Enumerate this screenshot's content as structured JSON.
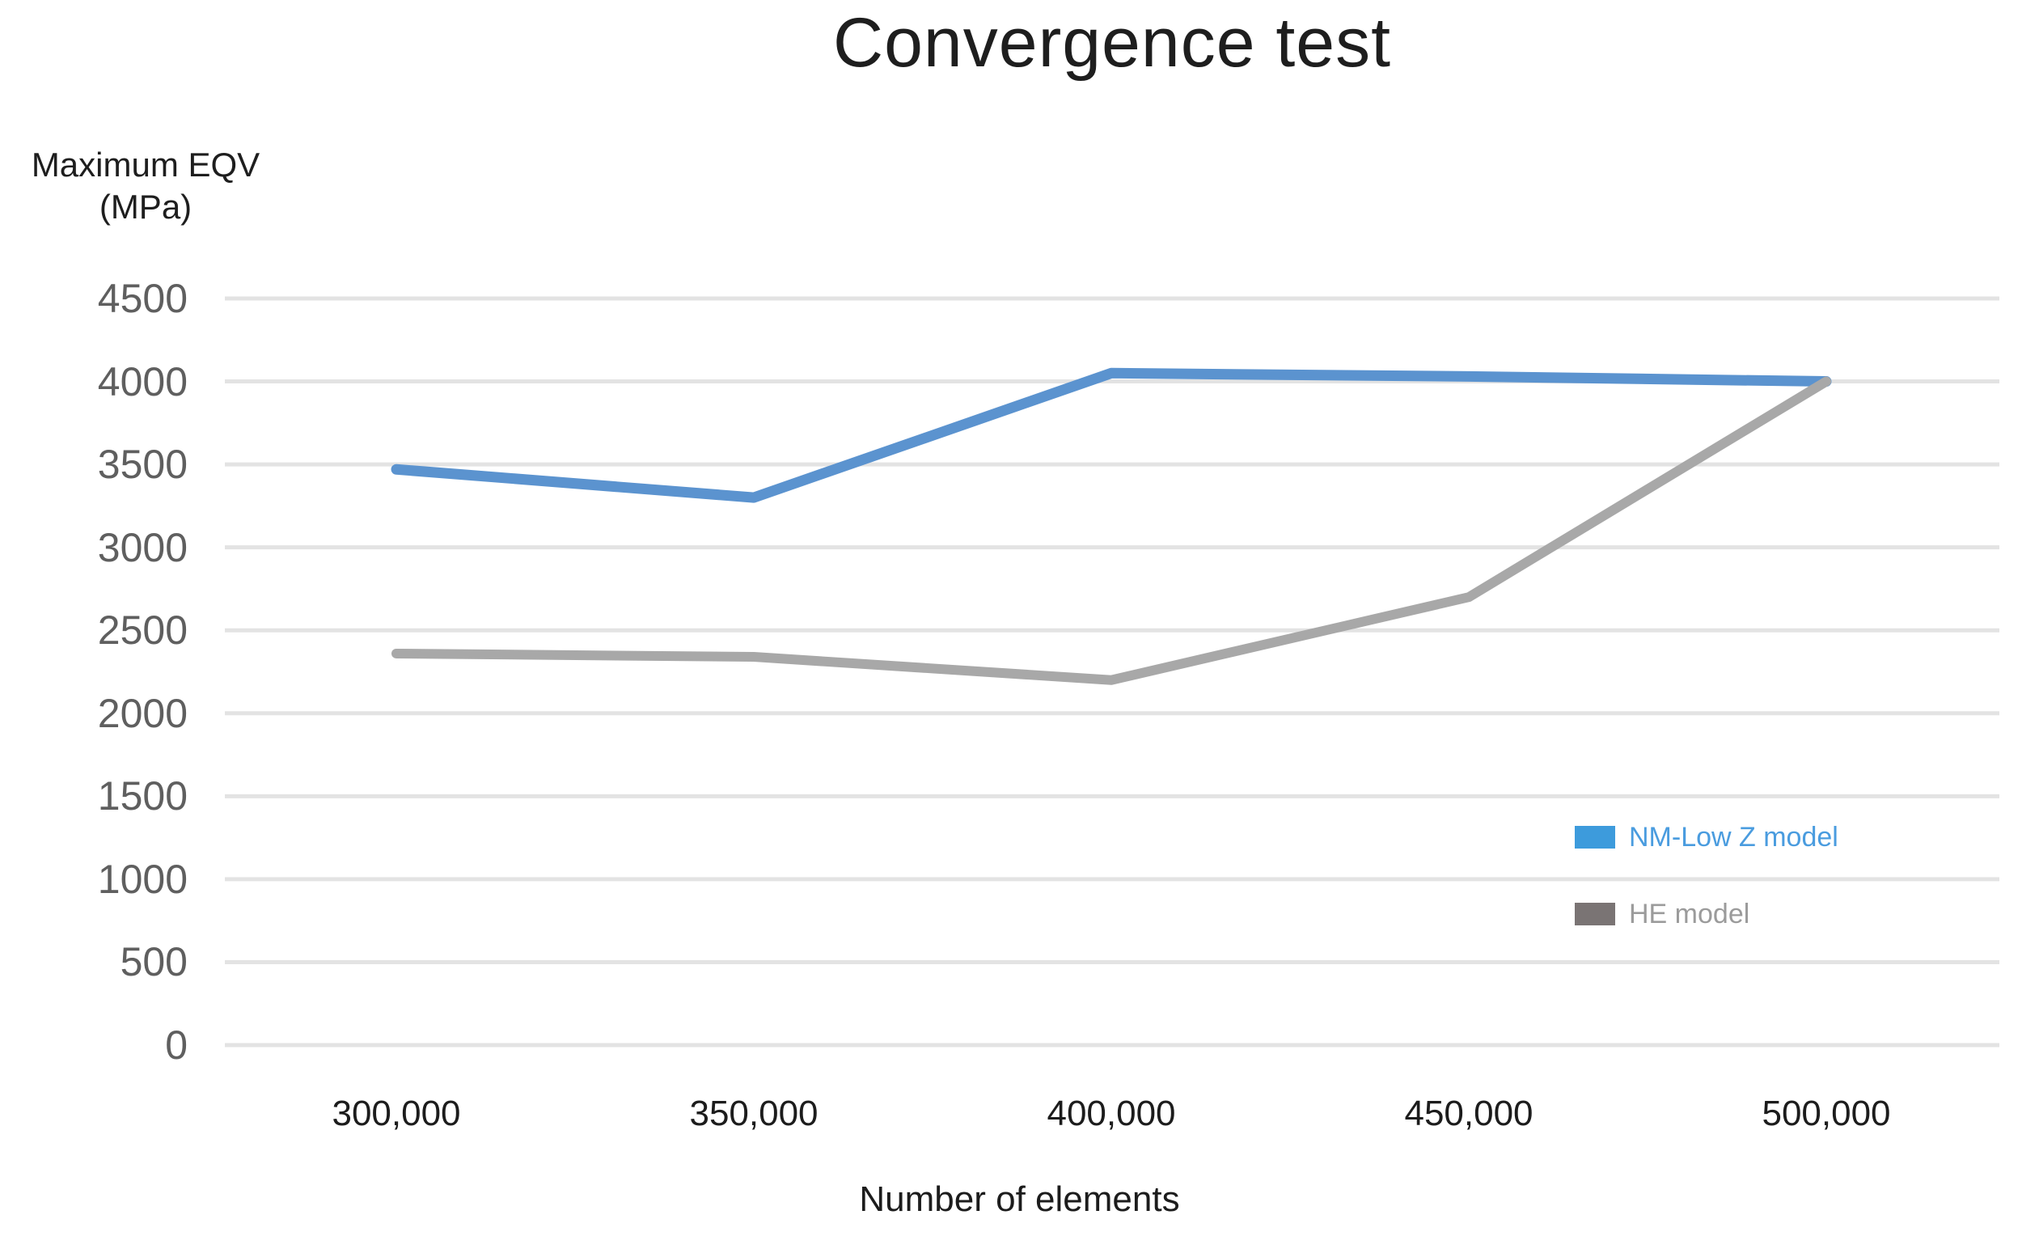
{
  "chart_data": {
    "type": "line",
    "title": "Convergence test",
    "xlabel": "Number of elements",
    "ylabel": "Maximum EQV (MPa)",
    "ylabel_lines": [
      "Maximum EQV",
      "(MPa)"
    ],
    "categories": [
      "300,000",
      "350,000",
      "400,000",
      "450,000",
      "500,000"
    ],
    "x_values": [
      300000,
      350000,
      400000,
      450000,
      500000
    ],
    "series": [
      {
        "name": "NM-Low Z model",
        "values": [
          3470,
          3300,
          4050,
          4030,
          4000
        ],
        "line_color": "#5B93CF",
        "swatch_color": "#3D9BDC",
        "label_color": "#4A9CDF"
      },
      {
        "name": "HE model",
        "values": [
          2360,
          2340,
          2200,
          2700,
          4000
        ],
        "line_color": "#A8A8A8",
        "swatch_color": "#7A7474",
        "label_color": "#9B9B9B"
      }
    ],
    "ylim": [
      0,
      4500
    ],
    "ytick_step": 500,
    "yticks": [
      "0",
      "500",
      "1000",
      "1500",
      "2000",
      "2500",
      "3000",
      "3500",
      "4000",
      "4500"
    ],
    "grid": true,
    "gridline_color": "#E3E3E3",
    "background_color": "#FFFFFF",
    "legend_position": "inside-right",
    "legend_order": [
      "NM-Low Z model",
      "HE model"
    ]
  }
}
